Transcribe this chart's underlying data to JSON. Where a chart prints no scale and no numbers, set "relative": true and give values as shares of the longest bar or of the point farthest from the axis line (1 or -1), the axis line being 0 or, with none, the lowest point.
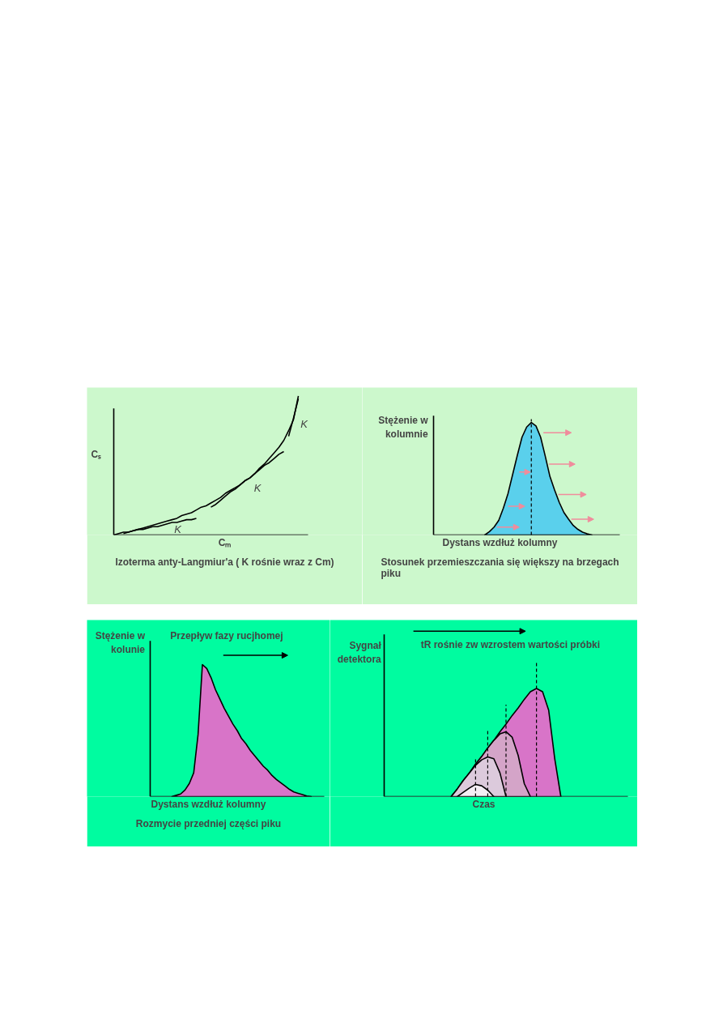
{
  "chart_data": [
    {
      "type": "line",
      "relative": true,
      "grid": false,
      "xlabel": "Cₘ",
      "ylabel": "Cₛ",
      "categories": [
        null,
        null,
        null,
        null,
        null,
        null,
        null,
        null,
        null,
        null,
        null,
        null,
        null,
        null,
        null,
        null,
        null,
        null,
        null,
        null,
        null,
        null,
        null,
        null,
        null,
        null,
        null,
        null,
        null,
        null,
        null,
        null,
        null,
        null,
        null,
        null,
        null,
        null,
        null,
        null,
        null
      ],
      "annotations": [
        "Izoterma anty-Langmiur'a ( K rośnie wraz z Cm)",
        "K",
        "K",
        "K"
      ],
      "series": [
        {
          "color": "#000000",
          "values": [
            0,
            0.01,
            0.02,
            0.02,
            0.03,
            0.04,
            0.05,
            0.06,
            0.07,
            0.08,
            0.09,
            0.1,
            0.11,
            0.12,
            0.14,
            0.15,
            0.16,
            0.18,
            0.2,
            0.21,
            0.23,
            0.25,
            0.27,
            0.3,
            0.32,
            0.34,
            0.36,
            0.39,
            0.41,
            0.44,
            0.48,
            0.51,
            0.55,
            0.59,
            0.63,
            0.68,
            0.75,
            0.83,
            1.0,
            null,
            null
          ]
        },
        {
          "color": "#000000",
          "values": [
            null,
            null,
            0.01,
            0.02,
            0.03,
            0.04,
            0.04,
            0.05,
            0.06,
            0.06,
            0.07,
            0.08,
            0.09,
            0.09,
            0.1,
            0.11,
            0.11,
            0.12,
            null,
            null,
            null,
            null,
            null,
            null,
            null,
            null,
            null,
            null,
            null,
            null,
            null,
            null,
            null,
            null,
            null,
            null,
            null,
            null,
            null,
            null,
            null
          ]
        },
        {
          "color": "#000000",
          "values": [
            null,
            null,
            null,
            null,
            null,
            null,
            null,
            null,
            null,
            null,
            null,
            null,
            null,
            null,
            null,
            null,
            null,
            null,
            null,
            null,
            0.2,
            0.22,
            0.25,
            0.28,
            0.31,
            0.33,
            0.36,
            0.39,
            0.41,
            0.44,
            0.47,
            0.5,
            0.52,
            0.55,
            0.58,
            0.6,
            null,
            null,
            null,
            null,
            null
          ]
        },
        {
          "color": "#000000",
          "values": [
            null,
            null,
            null,
            null,
            null,
            null,
            null,
            null,
            null,
            null,
            null,
            null,
            null,
            null,
            null,
            null,
            null,
            null,
            null,
            null,
            null,
            null,
            null,
            null,
            null,
            null,
            null,
            null,
            null,
            null,
            null,
            null,
            null,
            null,
            null,
            null,
            0.71,
            0.84,
            0.98,
            null,
            null
          ]
        }
      ]
    },
    {
      "type": "area",
      "relative": true,
      "grid": false,
      "xlabel": "Dystans wzdłuż kolumny",
      "ylabel": "Stężenie w kolumnie",
      "categories": [
        null,
        null,
        null,
        null,
        null,
        null,
        null,
        null,
        null,
        null,
        null,
        null,
        null,
        null,
        null,
        null,
        null,
        null,
        null,
        null,
        null,
        null,
        null,
        null,
        null,
        null,
        null,
        null,
        null,
        null,
        null,
        null,
        null,
        null,
        null,
        null,
        null,
        null,
        null,
        null,
        null
      ],
      "annotations": [
        "Stosunek przemieszczania się większy na brzegach piku"
      ],
      "series": [
        {
          "color": "#5ad0ec",
          "values": [
            null,
            null,
            null,
            null,
            null,
            null,
            null,
            null,
            null,
            null,
            null,
            0,
            0.03,
            0.07,
            0.13,
            0.24,
            0.37,
            0.54,
            0.71,
            0.87,
            0.96,
            1.0,
            0.97,
            0.87,
            0.7,
            0.52,
            0.4,
            0.29,
            0.2,
            0.14,
            0.085,
            0.05,
            0.025,
            0.01,
            0,
            null,
            null,
            null,
            null,
            null,
            null
          ]
        }
      ]
    },
    {
      "type": "area",
      "relative": true,
      "grid": false,
      "title": "Przepływ fazy rucjhomej",
      "xlabel": "Dystans wzdłuż kolumny",
      "ylabel": "Stężenie w kolunie",
      "categories": [
        null,
        null,
        null,
        null,
        null,
        null,
        null,
        null,
        null,
        null,
        null,
        null,
        null,
        null,
        null,
        null,
        null,
        null,
        null,
        null,
        null,
        null,
        null,
        null,
        null,
        null,
        null,
        null,
        null,
        null,
        null,
        null,
        null,
        null,
        null,
        null,
        null,
        null,
        null,
        null,
        null
      ],
      "annotations": [
        "Rozmycie przedniej części piku"
      ],
      "series": [
        {
          "color": "#d874c8",
          "values": [
            null,
            null,
            null,
            null,
            null,
            0,
            0.01,
            0.02,
            0.05,
            0.1,
            0.18,
            0.47,
            1.0,
            0.97,
            0.9,
            0.81,
            0.74,
            0.67,
            0.61,
            0.55,
            0.5,
            0.44,
            0.4,
            0.35,
            0.31,
            0.27,
            0.23,
            0.2,
            0.16,
            0.13,
            0.105,
            0.08,
            0.055,
            0.035,
            0.025,
            0.015,
            0.005,
            0,
            null,
            null,
            null
          ]
        }
      ]
    },
    {
      "type": "area",
      "relative": true,
      "grid": false,
      "title": "tR rośnie zw wzrostem wartości próbki",
      "xlabel": "Czas",
      "ylabel": "Sygnał detektora",
      "categories": [
        null,
        null,
        null,
        null,
        null,
        null,
        null,
        null,
        null,
        null,
        null,
        null,
        null,
        null,
        null,
        null,
        null,
        null,
        null,
        null,
        null,
        null,
        null,
        null,
        null,
        null,
        null,
        null,
        null,
        null,
        null,
        null,
        null,
        null,
        null,
        null,
        null,
        null,
        null,
        null,
        null
      ],
      "series": [
        {
          "color": "#d874c8",
          "values": [
            null,
            null,
            null,
            null,
            null,
            null,
            null,
            null,
            null,
            null,
            null,
            0,
            0.07,
            0.15,
            0.22,
            0.3,
            0.37,
            0.45,
            0.52,
            0.6,
            0.67,
            0.75,
            0.82,
            0.9,
            0.97,
            1.0,
            0.97,
            0.8,
            0.35,
            0,
            null,
            null,
            null,
            null,
            null,
            null,
            null,
            null,
            null,
            null,
            null
          ]
        },
        {
          "color": "#d4a4c8",
          "values": [
            null,
            null,
            null,
            null,
            null,
            null,
            null,
            null,
            null,
            null,
            null,
            0,
            0.07,
            0.15,
            0.22,
            0.3,
            0.37,
            0.45,
            0.52,
            0.58,
            0.6,
            0.55,
            0.38,
            0.12,
            0,
            null,
            null,
            null,
            null,
            null,
            null,
            null,
            null,
            null,
            null,
            null,
            null,
            null,
            null,
            null,
            null
          ]
        },
        {
          "color": "#dccadc",
          "values": [
            null,
            null,
            null,
            null,
            null,
            null,
            null,
            null,
            null,
            null,
            null,
            0,
            0.07,
            0.15,
            0.22,
            0.29,
            0.34,
            0.367,
            0.35,
            0.22,
            0,
            null,
            null,
            null,
            null,
            null,
            null,
            null,
            null,
            null,
            null,
            null,
            null,
            null,
            null,
            null,
            null,
            null,
            null,
            null,
            null
          ]
        },
        {
          "color": "#f4eef4",
          "values": [
            null,
            null,
            null,
            null,
            null,
            null,
            null,
            null,
            null,
            null,
            null,
            null,
            0,
            0.04,
            0.08,
            0.113,
            0.1,
            0.06,
            0,
            null,
            null,
            null,
            null,
            null,
            null,
            null,
            null,
            null,
            null,
            null,
            null,
            null,
            null,
            null,
            null,
            null,
            null,
            null,
            null,
            null,
            null
          ]
        }
      ]
    }
  ]
}
